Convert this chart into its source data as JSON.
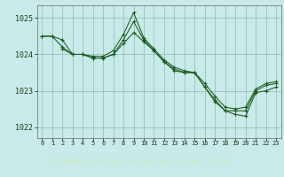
{
  "title": "Graphe pression niveau de la mer (hPa)",
  "bg_plot": "#c8eaea",
  "bg_label": "#2d6a2d",
  "grid_color": "#9bbfbf",
  "line_color": "#1a5c1a",
  "marker_color": "#1a5c1a",
  "text_color": "#c8eac8",
  "xlim": [
    -0.5,
    23.5
  ],
  "ylim": [
    1021.7,
    1025.35
  ],
  "yticks": [
    1022,
    1023,
    1024,
    1025
  ],
  "xtick_labels": [
    "0",
    "1",
    "2",
    "3",
    "4",
    "5",
    "6",
    "7",
    "8",
    "9",
    "10",
    "11",
    "12",
    "13",
    "14",
    "15",
    "16",
    "17",
    "18",
    "19",
    "20",
    "21",
    "22",
    "23"
  ],
  "series": [
    {
      "x": [
        0,
        1,
        2,
        3,
        4,
        5,
        6,
        7,
        8,
        9,
        10,
        11,
        12,
        13,
        14,
        15,
        16,
        17,
        18,
        19,
        20,
        21,
        22,
        23
      ],
      "y": [
        1024.5,
        1024.5,
        1024.4,
        1024.0,
        1024.0,
        1023.95,
        1023.95,
        1024.1,
        1024.55,
        1025.15,
        1024.45,
        1024.15,
        1023.85,
        1023.65,
        1023.55,
        1023.5,
        1023.2,
        1022.85,
        1022.55,
        1022.5,
        1022.55,
        1023.05,
        1023.2,
        1023.25
      ]
    },
    {
      "x": [
        0,
        1,
        2,
        3,
        4,
        5,
        6,
        7,
        8,
        9,
        10,
        11,
        12,
        13,
        14,
        15,
        16,
        17,
        18,
        19,
        20,
        21,
        22,
        23
      ],
      "y": [
        1024.5,
        1024.5,
        1024.2,
        1024.0,
        1024.0,
        1023.9,
        1023.9,
        1024.0,
        1024.3,
        1024.6,
        1024.35,
        1024.1,
        1023.8,
        1023.6,
        1023.5,
        1023.5,
        1023.1,
        1022.7,
        1022.45,
        1022.45,
        1022.45,
        1023.0,
        1023.15,
        1023.2
      ]
    },
    {
      "x": [
        2,
        3,
        4,
        5,
        6,
        7,
        8,
        9,
        10,
        11,
        12,
        13,
        14,
        15,
        16,
        17,
        18,
        19,
        20,
        21,
        22,
        23
      ],
      "y": [
        1024.15,
        1024.0,
        1024.0,
        1023.9,
        1023.9,
        1024.0,
        1024.4,
        1024.9,
        1024.4,
        1024.1,
        1023.8,
        1023.55,
        1023.5,
        1023.5,
        1023.1,
        1022.75,
        1022.45,
        1022.35,
        1022.3,
        1022.95,
        1023.0,
        1023.1
      ]
    }
  ]
}
